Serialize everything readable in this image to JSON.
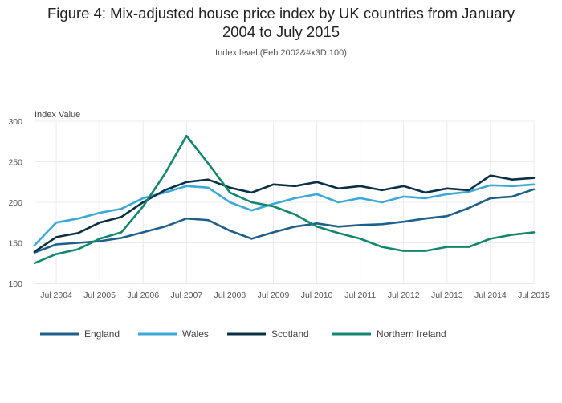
{
  "chart_data": {
    "type": "line",
    "title": "Figure 4: Mix-adjusted house price index by UK countries from January 2004 to July 2015",
    "title_lines": [
      "Figure 4: Mix-adjusted house price index by UK countries from January",
      "2004 to July 2015"
    ],
    "subtitle": "Index level (Feb 2002&#x3D;100)",
    "ylabel": "Index Value",
    "xlabel": "",
    "xlim": [
      "Jan 2004",
      "Jul 2015"
    ],
    "ylim": [
      100,
      300
    ],
    "yticks": [
      100,
      150,
      200,
      250,
      300
    ],
    "xtick_labels": [
      "Jul 2004",
      "Jul 2005",
      "Jul 2006",
      "Jul 2007",
      "Jul 2008",
      "Jul 2009",
      "Jul 2010",
      "Jul 2011",
      "Jul 2012",
      "Jul 2013",
      "Jul 2014",
      "Jul 2015"
    ],
    "grid": true,
    "legend_position": "bottom",
    "series": [
      {
        "name": "England",
        "color": "#1f5f8b",
        "x": [
          "Jan 2004",
          "Jul 2004",
          "Jan 2005",
          "Jul 2005",
          "Jan 2006",
          "Jul 2006",
          "Jan 2007",
          "Jul 2007",
          "Jan 2008",
          "Jul 2008",
          "Jan 2009",
          "Jul 2009",
          "Jan 2010",
          "Jul 2010",
          "Jan 2011",
          "Jul 2011",
          "Jan 2012",
          "Jul 2012",
          "Jan 2013",
          "Jul 2013",
          "Jan 2014",
          "Jul 2014",
          "Jan 2015",
          "Jul 2015"
        ],
        "values": [
          138,
          148,
          150,
          152,
          156,
          163,
          170,
          180,
          178,
          165,
          155,
          163,
          170,
          174,
          170,
          172,
          173,
          176,
          180,
          183,
          193,
          205,
          207,
          216
        ]
      },
      {
        "name": "Wales",
        "color": "#3ca8d8",
        "x": [
          "Jan 2004",
          "Jul 2004",
          "Jan 2005",
          "Jul 2005",
          "Jan 2006",
          "Jul 2006",
          "Jan 2007",
          "Jul 2007",
          "Jan 2008",
          "Jul 2008",
          "Jan 2009",
          "Jul 2009",
          "Jan 2010",
          "Jul 2010",
          "Jan 2011",
          "Jul 2011",
          "Jan 2012",
          "Jul 2012",
          "Jan 2013",
          "Jul 2013",
          "Jan 2014",
          "Jul 2014",
          "Jan 2015",
          "Jul 2015"
        ],
        "values": [
          147,
          175,
          180,
          187,
          192,
          205,
          212,
          220,
          218,
          200,
          190,
          198,
          205,
          210,
          200,
          205,
          200,
          207,
          205,
          210,
          213,
          221,
          220,
          222
        ]
      },
      {
        "name": "Scotland",
        "color": "#0b3045",
        "x": [
          "Jan 2004",
          "Jul 2004",
          "Jan 2005",
          "Jul 2005",
          "Jan 2006",
          "Jul 2006",
          "Jan 2007",
          "Jul 2007",
          "Jan 2008",
          "Jul 2008",
          "Jan 2009",
          "Jul 2009",
          "Jan 2010",
          "Jul 2010",
          "Jan 2011",
          "Jul 2011",
          "Jan 2012",
          "Jul 2012",
          "Jan 2013",
          "Jul 2013",
          "Jan 2014",
          "Jul 2014",
          "Jan 2015",
          "Jul 2015"
        ],
        "values": [
          139,
          157,
          162,
          175,
          182,
          200,
          215,
          225,
          228,
          218,
          212,
          222,
          220,
          225,
          217,
          220,
          215,
          220,
          212,
          217,
          215,
          233,
          228,
          230
        ]
      },
      {
        "name": "Northern Ireland",
        "color": "#12876e",
        "x": [
          "Jan 2004",
          "Jul 2004",
          "Jan 2005",
          "Jul 2005",
          "Jan 2006",
          "Jul 2006",
          "Jan 2007",
          "Jul 2007",
          "Jan 2008",
          "Jul 2008",
          "Jan 2009",
          "Jul 2009",
          "Jan 2010",
          "Jul 2010",
          "Jan 2011",
          "Jul 2011",
          "Jan 2012",
          "Jul 2012",
          "Jan 2013",
          "Jul 2013",
          "Jan 2014",
          "Jul 2014",
          "Jan 2015",
          "Jul 2015"
        ],
        "values": [
          125,
          136,
          142,
          155,
          163,
          195,
          235,
          282,
          248,
          212,
          200,
          195,
          185,
          170,
          162,
          155,
          145,
          140,
          140,
          145,
          145,
          155,
          160,
          163
        ]
      }
    ]
  }
}
